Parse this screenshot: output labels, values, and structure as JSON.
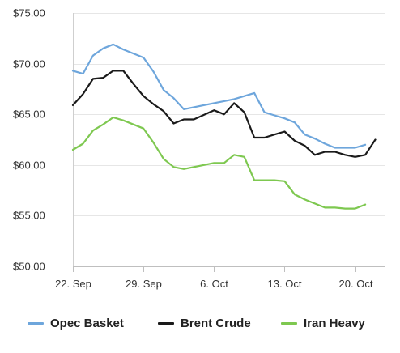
{
  "chart_data": {
    "type": "line",
    "x_label_values": [
      0,
      7,
      14,
      21,
      28
    ],
    "x_labels": [
      "22. Sep",
      "29. Sep",
      "6. Oct",
      "13. Oct",
      "20. Oct"
    ],
    "xlim": [
      0,
      31
    ],
    "ylim": [
      50,
      75
    ],
    "y_ticks": [
      50,
      55,
      60,
      65,
      70,
      75
    ],
    "y_tick_labels": [
      "$50.00",
      "$55.00",
      "$60.00",
      "$65.00",
      "$70.00",
      "$75.00"
    ],
    "grid": {
      "horizontal": true,
      "vertical": false
    },
    "legend_position": "bottom",
    "series": [
      {
        "name": "Opec Basket",
        "color": "#6ea6dc",
        "x": [
          0,
          1,
          2,
          3,
          4,
          5,
          6,
          7,
          8,
          9,
          10,
          11,
          12,
          15,
          16,
          17,
          18,
          19,
          20,
          21,
          22,
          23,
          24,
          25,
          26,
          27,
          28,
          29
        ],
        "y": [
          69.3,
          69.0,
          70.8,
          71.5,
          71.9,
          71.4,
          71.0,
          70.6,
          69.2,
          67.4,
          66.6,
          65.5,
          65.7,
          66.3,
          66.5,
          66.8,
          67.1,
          65.2,
          64.9,
          64.6,
          64.2,
          63.0,
          62.6,
          62.1,
          61.7,
          61.7,
          61.7,
          62.0
        ]
      },
      {
        "name": "Brent Crude",
        "color": "#1a1a1a",
        "x": [
          0,
          1,
          2,
          3,
          4,
          5,
          6,
          7,
          8,
          9,
          10,
          11,
          12,
          14,
          15,
          16,
          17,
          18,
          19,
          20,
          21,
          22,
          23,
          24,
          25,
          26,
          27,
          28,
          29,
          30
        ],
        "y": [
          65.9,
          67.0,
          68.5,
          68.6,
          69.3,
          69.3,
          68.0,
          66.8,
          66.0,
          65.3,
          64.1,
          64.5,
          64.5,
          65.4,
          65.0,
          66.1,
          65.2,
          62.7,
          62.7,
          63.0,
          63.3,
          62.4,
          61.9,
          61.0,
          61.3,
          61.3,
          61.0,
          60.8,
          61.0,
          62.5
        ]
      },
      {
        "name": "Iran Heavy",
        "color": "#7ec850",
        "x": [
          0,
          1,
          2,
          3,
          4,
          5,
          6,
          7,
          8,
          9,
          10,
          11,
          12,
          13,
          14,
          15,
          16,
          17,
          18,
          19,
          20,
          21,
          22,
          23,
          24,
          25,
          26,
          27,
          28,
          29
        ],
        "y": [
          61.5,
          62.1,
          63.4,
          64.0,
          64.7,
          64.4,
          64.0,
          63.6,
          62.2,
          60.6,
          59.8,
          59.6,
          59.8,
          60.0,
          60.2,
          60.2,
          61.0,
          60.8,
          58.5,
          58.5,
          58.5,
          58.4,
          57.1,
          56.6,
          56.2,
          55.8,
          55.8,
          55.7,
          55.7,
          56.1
        ]
      }
    ]
  }
}
